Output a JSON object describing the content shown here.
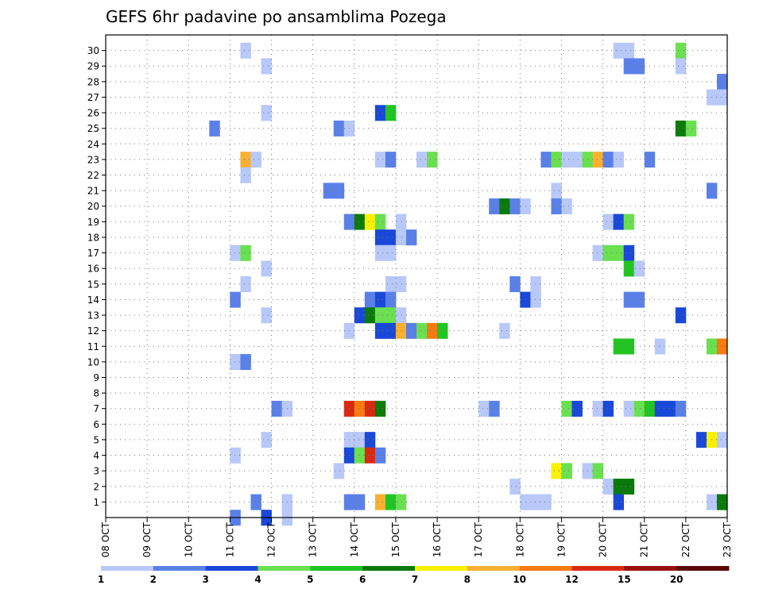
{
  "chart_data": {
    "type": "heatmap",
    "title": "GEFS 6hr padavine po ansamblima Pozega",
    "xlabel": "",
    "ylabel": "",
    "x_tick_labels": [
      "08 OCT",
      "09 OCT",
      "10 OCT",
      "11 OCT",
      "12 OCT",
      "13 OCT",
      "14 OCT",
      "15 OCT",
      "16 OCT",
      "17 OCT",
      "18 OCT",
      "19 OCT",
      "20 OCT",
      "21 OCT",
      "22 OCT",
      "23 OCT"
    ],
    "y_tick_labels": [
      "1",
      "2",
      "3",
      "4",
      "5",
      "6",
      "7",
      "8",
      "9",
      "10",
      "11",
      "12",
      "13",
      "14",
      "15",
      "16",
      "17",
      "18",
      "19",
      "20",
      "21",
      "22",
      "23",
      "24",
      "25",
      "26",
      "27",
      "28",
      "29",
      "30"
    ],
    "time_steps_per_day": 4,
    "num_time_steps": 60,
    "grid": true,
    "colorbar": {
      "labels": [
        "1",
        "2",
        "3",
        "4",
        "5",
        "6",
        "7",
        "8",
        "10",
        "12",
        "15",
        "20"
      ],
      "colors": [
        "#b8c8f8",
        "#5a80e8",
        "#1a48d8",
        "#6ae050",
        "#22c422",
        "#0a7a0a",
        "#f8f000",
        "#f8b030",
        "#f87a10",
        "#d82a10",
        "#9a1010",
        "#5a0808"
      ]
    },
    "cells": [
      {
        "member": 30,
        "step": 13,
        "level": 1
      },
      {
        "member": 30,
        "step": 49,
        "level": 1
      },
      {
        "member": 30,
        "step": 50,
        "level": 1
      },
      {
        "member": 30,
        "step": 55,
        "level": 4
      },
      {
        "member": 29,
        "step": 15,
        "level": 1
      },
      {
        "member": 29,
        "step": 50,
        "level": 2
      },
      {
        "member": 29,
        "step": 51,
        "level": 2
      },
      {
        "member": 29,
        "step": 55,
        "level": 1
      },
      {
        "member": 28,
        "step": 59,
        "level": 2
      },
      {
        "member": 27,
        "step": 58,
        "level": 1
      },
      {
        "member": 27,
        "step": 59,
        "level": 1
      },
      {
        "member": 26,
        "step": 15,
        "level": 1
      },
      {
        "member": 26,
        "step": 26,
        "level": 3
      },
      {
        "member": 26,
        "step": 27,
        "level": 5
      },
      {
        "member": 25,
        "step": 10,
        "level": 2
      },
      {
        "member": 25,
        "step": 22,
        "level": 2
      },
      {
        "member": 25,
        "step": 23,
        "level": 1
      },
      {
        "member": 25,
        "step": 55,
        "level": 6
      },
      {
        "member": 25,
        "step": 56,
        "level": 4
      },
      {
        "member": 23,
        "step": 13,
        "level": 8
      },
      {
        "member": 23,
        "step": 14,
        "level": 1
      },
      {
        "member": 23,
        "step": 26,
        "level": 1
      },
      {
        "member": 23,
        "step": 27,
        "level": 2
      },
      {
        "member": 23,
        "step": 30,
        "level": 1
      },
      {
        "member": 23,
        "step": 31,
        "level": 4
      },
      {
        "member": 23,
        "step": 42,
        "level": 2
      },
      {
        "member": 23,
        "step": 43,
        "level": 4
      },
      {
        "member": 23,
        "step": 44,
        "level": 1
      },
      {
        "member": 23,
        "step": 45,
        "level": 1
      },
      {
        "member": 23,
        "step": 46,
        "level": 4
      },
      {
        "member": 23,
        "step": 47,
        "level": 8
      },
      {
        "member": 23,
        "step": 48,
        "level": 2
      },
      {
        "member": 23,
        "step": 49,
        "level": 1
      },
      {
        "member": 23,
        "step": 52,
        "level": 2
      },
      {
        "member": 22,
        "step": 13,
        "level": 1
      },
      {
        "member": 21,
        "step": 21,
        "level": 2
      },
      {
        "member": 21,
        "step": 22,
        "level": 2
      },
      {
        "member": 21,
        "step": 43,
        "level": 1
      },
      {
        "member": 21,
        "step": 58,
        "level": 2
      },
      {
        "member": 20,
        "step": 37,
        "level": 2
      },
      {
        "member": 20,
        "step": 38,
        "level": 6
      },
      {
        "member": 20,
        "step": 39,
        "level": 2
      },
      {
        "member": 20,
        "step": 40,
        "level": 1
      },
      {
        "member": 20,
        "step": 43,
        "level": 2
      },
      {
        "member": 20,
        "step": 44,
        "level": 1
      },
      {
        "member": 19,
        "step": 23,
        "level": 2
      },
      {
        "member": 19,
        "step": 24,
        "level": 6
      },
      {
        "member": 19,
        "step": 25,
        "level": 7
      },
      {
        "member": 19,
        "step": 26,
        "level": 4
      },
      {
        "member": 19,
        "step": 28,
        "level": 1
      },
      {
        "member": 19,
        "step": 48,
        "level": 1
      },
      {
        "member": 19,
        "step": 49,
        "level": 3
      },
      {
        "member": 19,
        "step": 50,
        "level": 4
      },
      {
        "member": 18,
        "step": 26,
        "level": 3
      },
      {
        "member": 18,
        "step": 27,
        "level": 3
      },
      {
        "member": 18,
        "step": 28,
        "level": 1
      },
      {
        "member": 18,
        "step": 29,
        "level": 2
      },
      {
        "member": 17,
        "step": 12,
        "level": 1
      },
      {
        "member": 17,
        "step": 13,
        "level": 4
      },
      {
        "member": 17,
        "step": 26,
        "level": 1
      },
      {
        "member": 17,
        "step": 27,
        "level": 1
      },
      {
        "member": 17,
        "step": 47,
        "level": 1
      },
      {
        "member": 17,
        "step": 48,
        "level": 4
      },
      {
        "member": 17,
        "step": 49,
        "level": 4
      },
      {
        "member": 17,
        "step": 50,
        "level": 3
      },
      {
        "member": 16,
        "step": 15,
        "level": 1
      },
      {
        "member": 16,
        "step": 50,
        "level": 5
      },
      {
        "member": 16,
        "step": 51,
        "level": 1
      },
      {
        "member": 15,
        "step": 13,
        "level": 1
      },
      {
        "member": 15,
        "step": 27,
        "level": 1
      },
      {
        "member": 15,
        "step": 28,
        "level": 1
      },
      {
        "member": 15,
        "step": 39,
        "level": 2
      },
      {
        "member": 15,
        "step": 41,
        "level": 1
      },
      {
        "member": 14,
        "step": 12,
        "level": 2
      },
      {
        "member": 14,
        "step": 25,
        "level": 2
      },
      {
        "member": 14,
        "step": 26,
        "level": 3
      },
      {
        "member": 14,
        "step": 27,
        "level": 2
      },
      {
        "member": 14,
        "step": 40,
        "level": 3
      },
      {
        "member": 14,
        "step": 41,
        "level": 1
      },
      {
        "member": 14,
        "step": 50,
        "level": 2
      },
      {
        "member": 14,
        "step": 51,
        "level": 2
      },
      {
        "member": 13,
        "step": 15,
        "level": 1
      },
      {
        "member": 13,
        "step": 24,
        "level": 3
      },
      {
        "member": 13,
        "step": 25,
        "level": 6
      },
      {
        "member": 13,
        "step": 26,
        "level": 4
      },
      {
        "member": 13,
        "step": 27,
        "level": 4
      },
      {
        "member": 13,
        "step": 28,
        "level": 1
      },
      {
        "member": 13,
        "step": 55,
        "level": 3
      },
      {
        "member": 12,
        "step": 23,
        "level": 1
      },
      {
        "member": 12,
        "step": 26,
        "level": 3
      },
      {
        "member": 12,
        "step": 27,
        "level": 3
      },
      {
        "member": 12,
        "step": 28,
        "level": 8
      },
      {
        "member": 12,
        "step": 29,
        "level": 2
      },
      {
        "member": 12,
        "step": 30,
        "level": 4
      },
      {
        "member": 12,
        "step": 31,
        "level": 9
      },
      {
        "member": 12,
        "step": 32,
        "level": 5
      },
      {
        "member": 12,
        "step": 38,
        "level": 1
      },
      {
        "member": 11,
        "step": 49,
        "level": 5
      },
      {
        "member": 11,
        "step": 50,
        "level": 5
      },
      {
        "member": 11,
        "step": 53,
        "level": 1
      },
      {
        "member": 11,
        "step": 58,
        "level": 4
      },
      {
        "member": 11,
        "step": 59,
        "level": 9
      },
      {
        "member": 10,
        "step": 12,
        "level": 1
      },
      {
        "member": 10,
        "step": 13,
        "level": 2
      },
      {
        "member": 7,
        "step": 16,
        "level": 2
      },
      {
        "member": 7,
        "step": 17,
        "level": 1
      },
      {
        "member": 7,
        "step": 23,
        "level": 10
      },
      {
        "member": 7,
        "step": 24,
        "level": 9
      },
      {
        "member": 7,
        "step": 25,
        "level": 10
      },
      {
        "member": 7,
        "step": 26,
        "level": 6
      },
      {
        "member": 7,
        "step": 36,
        "level": 1
      },
      {
        "member": 7,
        "step": 37,
        "level": 2
      },
      {
        "member": 7,
        "step": 44,
        "level": 4
      },
      {
        "member": 7,
        "step": 45,
        "level": 3
      },
      {
        "member": 7,
        "step": 47,
        "level": 1
      },
      {
        "member": 7,
        "step": 48,
        "level": 3
      },
      {
        "member": 7,
        "step": 50,
        "level": 1
      },
      {
        "member": 7,
        "step": 51,
        "level": 4
      },
      {
        "member": 7,
        "step": 52,
        "level": 5
      },
      {
        "member": 7,
        "step": 53,
        "level": 3
      },
      {
        "member": 7,
        "step": 54,
        "level": 3
      },
      {
        "member": 7,
        "step": 55,
        "level": 2
      },
      {
        "member": 5,
        "step": 15,
        "level": 1
      },
      {
        "member": 5,
        "step": 23,
        "level": 1
      },
      {
        "member": 5,
        "step": 24,
        "level": 1
      },
      {
        "member": 5,
        "step": 25,
        "level": 3
      },
      {
        "member": 5,
        "step": 57,
        "level": 3
      },
      {
        "member": 5,
        "step": 58,
        "level": 7
      },
      {
        "member": 5,
        "step": 59,
        "level": 1
      },
      {
        "member": 4,
        "step": 12,
        "level": 1
      },
      {
        "member": 4,
        "step": 23,
        "level": 3
      },
      {
        "member": 4,
        "step": 24,
        "level": 4
      },
      {
        "member": 4,
        "step": 25,
        "level": 10
      },
      {
        "member": 4,
        "step": 26,
        "level": 2
      },
      {
        "member": 3,
        "step": 22,
        "level": 1
      },
      {
        "member": 3,
        "step": 43,
        "level": 7
      },
      {
        "member": 3,
        "step": 44,
        "level": 4
      },
      {
        "member": 3,
        "step": 46,
        "level": 1
      },
      {
        "member": 3,
        "step": 47,
        "level": 4
      },
      {
        "member": 2,
        "step": 39,
        "level": 1
      },
      {
        "member": 2,
        "step": 48,
        "level": 1
      },
      {
        "member": 2,
        "step": 49,
        "level": 6
      },
      {
        "member": 2,
        "step": 50,
        "level": 6
      },
      {
        "member": 1,
        "step": 14,
        "level": 2
      },
      {
        "member": 1,
        "step": 17,
        "level": 1
      },
      {
        "member": 1,
        "step": 23,
        "level": 2
      },
      {
        "member": 1,
        "step": 24,
        "level": 2
      },
      {
        "member": 1,
        "step": 26,
        "level": 8
      },
      {
        "member": 1,
        "step": 27,
        "level": 5
      },
      {
        "member": 1,
        "step": 28,
        "level": 4
      },
      {
        "member": 1,
        "step": 40,
        "level": 1
      },
      {
        "member": 1,
        "step": 41,
        "level": 1
      },
      {
        "member": 1,
        "step": 42,
        "level": 1
      },
      {
        "member": 1,
        "step": 49,
        "level": 3
      },
      {
        "member": 1,
        "step": 58,
        "level": 1
      },
      {
        "member": 1,
        "step": 59,
        "level": 6
      },
      {
        "member": 0,
        "step": 12,
        "level": 2
      },
      {
        "member": 0,
        "step": 15,
        "level": 3
      },
      {
        "member": 0,
        "step": 17,
        "level": 1
      }
    ]
  }
}
